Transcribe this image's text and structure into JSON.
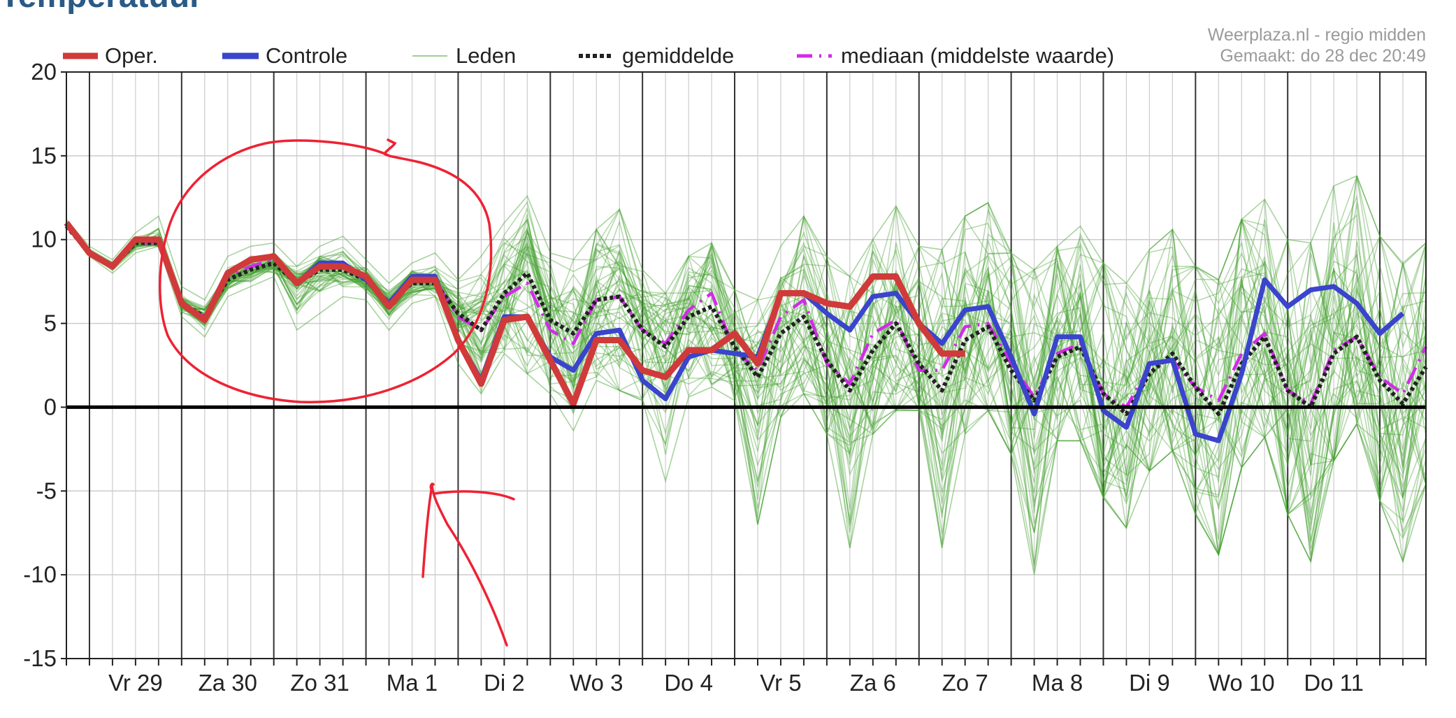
{
  "page": {
    "title": "Temperatuur",
    "credit_line1": "Weerplaza.nl - regio midden",
    "credit_line2": "Gemaakt: do 28 dec 20:49"
  },
  "colors": {
    "oper": "#d03a3a",
    "controle": "#3a44cc",
    "leden": "#3f9e2a",
    "gemiddelde": "#222222",
    "mediaan": "#d22be8",
    "annotation": "#ee2233",
    "grid": "#cccccc",
    "day_line": "#333333"
  },
  "chart_data": {
    "type": "line",
    "title": "Temperatuur",
    "xlabel": "",
    "ylabel": "",
    "ylim": [
      -15,
      20
    ],
    "yticks": [
      20,
      15,
      10,
      5,
      0,
      -5,
      -10,
      -15
    ],
    "ytick_labels": [
      "20",
      "15",
      "10",
      "5",
      "0",
      "-5",
      "-10",
      "-15"
    ],
    "x_unit": "forecast step (6 h)",
    "xlim": [
      0,
      59
    ],
    "day_boundaries": [
      1,
      5,
      9,
      13,
      17,
      21,
      25,
      29,
      33,
      37,
      41,
      45,
      49,
      53,
      57
    ],
    "day_labels": [
      "Vr 29",
      "Za 30",
      "Zo 31",
      "Ma 1",
      "Di 2",
      "Wo 3",
      "Do 4",
      "Vr 5",
      "Za 6",
      "Zo 7",
      "Ma 8",
      "Di 9",
      "Wo 10",
      "Do 11"
    ],
    "grid": true,
    "legend_position": "top",
    "legend": [
      "Oper.",
      "Controle",
      "Leden",
      "gemiddelde",
      "mediaan (middelste waarde)"
    ],
    "series": [
      {
        "name": "Oper.",
        "color": "#d03a3a",
        "x_start": 0,
        "values": [
          11,
          9.2,
          8.4,
          10,
          10,
          6.2,
          5.2,
          8,
          8.8,
          9,
          7.4,
          8.4,
          8.4,
          7.8,
          6,
          7.6,
          7.6,
          4,
          1.4,
          5.2,
          5.4,
          2.8,
          0.2,
          4,
          4,
          2.2,
          1.8,
          3.4,
          3.4,
          4.4,
          2.6,
          6.8,
          6.8,
          6.2,
          6,
          7.8,
          7.8,
          5,
          3.2,
          3.2
        ]
      },
      {
        "name": "Controle",
        "color": "#3a44cc",
        "x_start": 0,
        "values": [
          11,
          9.2,
          8.4,
          10,
          10,
          6.2,
          5.2,
          8,
          8.8,
          9,
          7.4,
          8.6,
          8.6,
          7.6,
          6.2,
          7.8,
          7.8,
          4,
          1.6,
          5.4,
          5.4,
          3,
          2.2,
          4.4,
          4.6,
          1.6,
          0.5,
          3,
          3.4,
          3.2,
          3,
          6.8,
          6.8,
          5.6,
          4.6,
          6.6,
          6.8,
          5,
          3.8,
          5.8,
          6,
          3,
          -0.4,
          4.2,
          4.2,
          -0.2,
          -1.2,
          2.6,
          2.8,
          -1.6,
          -2,
          2,
          7.6,
          6,
          7,
          7.2,
          6.2,
          4.4,
          5.6
        ]
      },
      {
        "name": "gemiddelde",
        "color": "#222222",
        "x_start": 0,
        "values": [
          10.8,
          9.2,
          8.4,
          9.8,
          9.8,
          6.2,
          5.4,
          7.6,
          8.2,
          8.6,
          7.4,
          8.2,
          8.2,
          7.6,
          6.2,
          7.4,
          7.4,
          5.6,
          4.6,
          6.8,
          8,
          5.2,
          4.4,
          6.4,
          6.6,
          4.6,
          3.6,
          5.4,
          6,
          3.6,
          1.8,
          4.4,
          5.4,
          2.8,
          1,
          3.4,
          5,
          2.6,
          1,
          4,
          4.8,
          2.2,
          0.4,
          3,
          3.6,
          0.8,
          -0.4,
          2,
          3.2,
          1.2,
          -0.4,
          2.6,
          4.2,
          1,
          0,
          3.2,
          4.2,
          1.6,
          0.2,
          2.4
        ]
      },
      {
        "name": "mediaan (middelste waarde)",
        "color": "#d22be8",
        "x_start": 0,
        "values": [
          10.8,
          9.2,
          8.4,
          9.8,
          9.8,
          6.2,
          5.4,
          7.8,
          8.4,
          8.8,
          7.4,
          8.4,
          8.4,
          7.6,
          6.2,
          7.6,
          7.6,
          5.4,
          4.6,
          6.6,
          7.4,
          4.6,
          3.8,
          6.4,
          6.6,
          4.6,
          3.8,
          5.8,
          6.8,
          3.4,
          2.2,
          5.4,
          6.4,
          2.6,
          1.4,
          4.4,
          5.2,
          2.2,
          2.2,
          4.8,
          5,
          2.6,
          0.6,
          3.2,
          3.8,
          0.8,
          0,
          2.4,
          2.8,
          1.2,
          0.4,
          3.2,
          4.4,
          1,
          0.2,
          3.4,
          4.2,
          1.8,
          0.8,
          3.6
        ]
      }
    ],
    "members": {
      "name": "Leden",
      "count": 50,
      "color": "#3f9e2a",
      "x_start": 0,
      "envelope_min": [
        10.8,
        9,
        8,
        9.2,
        9.6,
        5.4,
        4.2,
        6.6,
        7.2,
        7.8,
        4.6,
        5.6,
        6.6,
        6.4,
        4.6,
        6.2,
        6.6,
        2.6,
        0.8,
        3.2,
        2,
        0.8,
        -1.4,
        1.6,
        1,
        0.4,
        -4.4,
        0.6,
        1.2,
        0.4,
        -7,
        -0.6,
        0.8,
        -1.6,
        -8.4,
        -1.6,
        -0.2,
        -0.2,
        -8.4,
        -1.6,
        -0.2,
        -2.8,
        -10,
        -2,
        -2,
        -5.4,
        -7.2,
        -3.8,
        -2.6,
        -6.4,
        -8.8,
        -3.6,
        -1.8,
        -6.4,
        -9.2,
        -3.2,
        -1,
        -5.6,
        -9.2,
        -4.6
      ],
      "envelope_max": [
        11.2,
        9.6,
        8.8,
        10.4,
        11.4,
        7.2,
        6.4,
        9,
        9.6,
        9.8,
        8.4,
        9.6,
        10.2,
        8.8,
        7.4,
        8.6,
        9.2,
        7.6,
        9,
        11,
        12.6,
        9.2,
        8.8,
        10.6,
        11.8,
        8.2,
        6.8,
        9,
        9.8,
        7,
        6.4,
        9.6,
        11.4,
        9,
        7.8,
        10,
        12,
        9.6,
        9.4,
        11.4,
        12.2,
        9.2,
        8.2,
        9.6,
        10.8,
        8.6,
        7.4,
        9.4,
        10.6,
        8.4,
        7.6,
        11.2,
        12.4,
        10,
        9.8,
        13.2,
        13.8,
        10.2,
        8.6,
        9.8
      ]
    },
    "annotations": [
      {
        "type": "freehand-ellipse",
        "color": "#ee2233"
      },
      {
        "type": "freehand-arrow",
        "color": "#ee2233"
      }
    ]
  }
}
